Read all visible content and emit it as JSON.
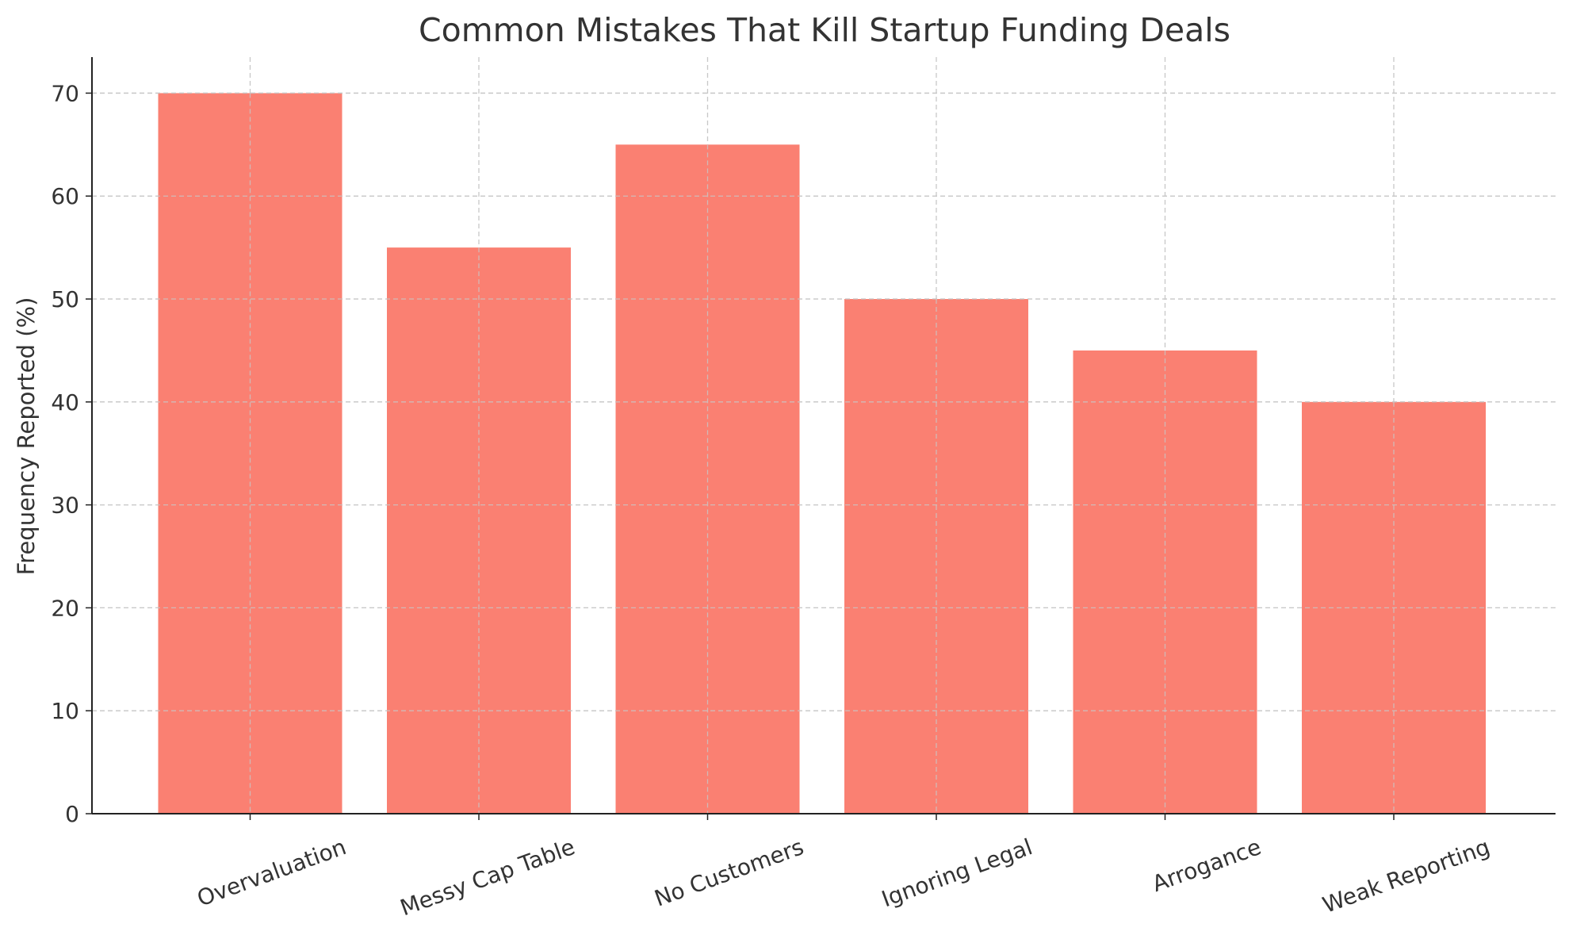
{
  "chart_data": {
    "type": "bar",
    "title": "Common Mistakes That Kill Startup Funding Deals",
    "xlabel": "",
    "ylabel": "Frequency Reported (%)",
    "categories": [
      "Overvaluation",
      "Messy Cap Table",
      "No Customers",
      "Ignoring Legal",
      "Arrogance",
      "Weak Reporting"
    ],
    "values": [
      70,
      55,
      65,
      50,
      45,
      40
    ],
    "ylim": [
      0,
      73.5
    ],
    "yticks": [
      0,
      10,
      20,
      30,
      40,
      50,
      60,
      70
    ],
    "grid": true,
    "bar_color": "#fa8072",
    "xtick_rotation": -20
  }
}
